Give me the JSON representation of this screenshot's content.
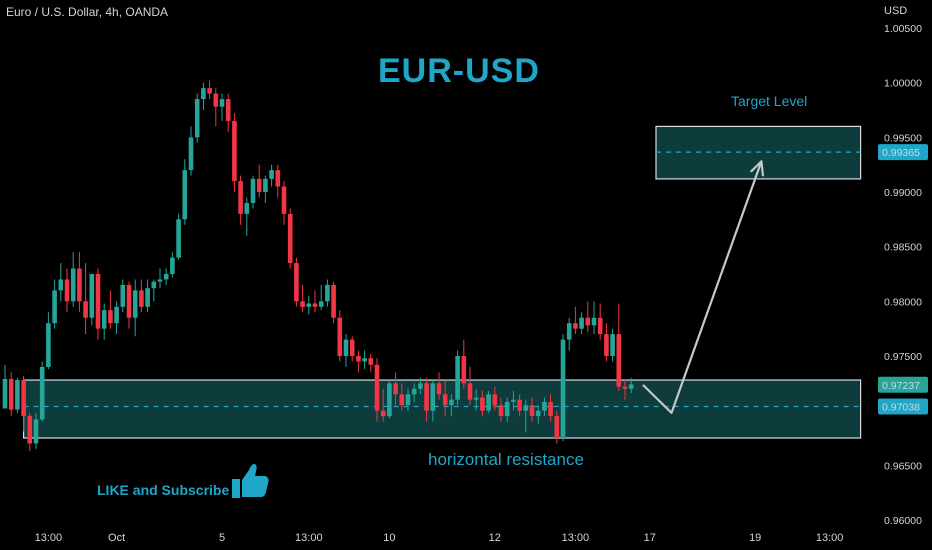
{
  "header": {
    "symbol": "Euro / U.S. Dollar, 4h, OANDA",
    "currency": "USD"
  },
  "annotations": {
    "headline": "EUR-USD",
    "target_label": "Target Level",
    "horizontal_resistance": "horizontal resistance",
    "like_subscribe": "LIKE and Subscribe",
    "thumbs_icon": "thumbs-up-icon"
  },
  "colors": {
    "background": "#000000",
    "up": "#26a69a",
    "down": "#f23645",
    "accent": "#1fa7c9",
    "zone_fill": "#0e3b3b",
    "zone_border": "#d8dde0",
    "arrow": "#c8c8c8"
  },
  "chart_data": {
    "type": "candlestick",
    "ylim": [
      0.96,
      1.005
    ],
    "y_ticks": [
      {
        "value": 0.96,
        "label": "0.96000"
      },
      {
        "value": 0.965,
        "label": "0.96500"
      },
      {
        "value": 0.975,
        "label": "0.97500"
      },
      {
        "value": 0.98,
        "label": "0.98000"
      },
      {
        "value": 0.985,
        "label": "0.98500"
      },
      {
        "value": 0.99,
        "label": "0.99000"
      },
      {
        "value": 0.995,
        "label": "0.99500"
      },
      {
        "value": 1.0,
        "label": "1.00000"
      },
      {
        "value": 1.005,
        "label": "1.00500"
      }
    ],
    "x_ticks": [
      {
        "index": 7,
        "label": "13:00"
      },
      {
        "index": 18,
        "label": "Oct"
      },
      {
        "index": 35,
        "label": "5"
      },
      {
        "index": 49,
        "label": "13:00"
      },
      {
        "index": 62,
        "label": "10"
      },
      {
        "index": 79,
        "label": "12"
      },
      {
        "index": 92,
        "label": "13:00"
      },
      {
        "index": 104,
        "label": "17"
      },
      {
        "index": 121,
        "label": "19"
      },
      {
        "index": 133,
        "label": "13:00"
      }
    ],
    "price_labels": [
      {
        "value": 0.97237,
        "label": "0.97237",
        "color": "#26a69a"
      },
      {
        "value": 0.97038,
        "label": "0.97038",
        "color": "#1fa7c9"
      },
      {
        "value": 0.99365,
        "label": "0.99365",
        "color": "#1fa7c9"
      }
    ],
    "zones": [
      {
        "name": "horizontal resistance",
        "from_index": 3,
        "to_index": 138,
        "low": 0.9675,
        "high": 0.9728,
        "mid": 0.97038
      },
      {
        "name": "Target Level",
        "from_index": 105,
        "to_index": 138,
        "low": 0.9912,
        "high": 0.996,
        "mid": 0.99365
      }
    ],
    "projection_path": [
      {
        "index": 103,
        "price": 0.9723
      },
      {
        "index": 107.5,
        "price": 0.9698
      },
      {
        "index": 122,
        "price": 0.9928
      }
    ],
    "candles": [
      [
        0.9702,
        0.9742,
        0.9702,
        0.9729
      ],
      [
        0.9729,
        0.9735,
        0.9695,
        0.9701
      ],
      [
        0.9701,
        0.973,
        0.9698,
        0.9728
      ],
      [
        0.9728,
        0.9732,
        0.9681,
        0.9695
      ],
      [
        0.9695,
        0.9698,
        0.9663,
        0.967
      ],
      [
        0.967,
        0.9698,
        0.9665,
        0.9692
      ],
      [
        0.9692,
        0.9745,
        0.969,
        0.974
      ],
      [
        0.974,
        0.979,
        0.9738,
        0.978
      ],
      [
        0.978,
        0.982,
        0.9775,
        0.981
      ],
      [
        0.981,
        0.9835,
        0.98,
        0.982
      ],
      [
        0.982,
        0.983,
        0.979,
        0.98
      ],
      [
        0.98,
        0.9845,
        0.9795,
        0.983
      ],
      [
        0.983,
        0.9845,
        0.979,
        0.98
      ],
      [
        0.98,
        0.9835,
        0.977,
        0.9785
      ],
      [
        0.9785,
        0.9825,
        0.9778,
        0.9825
      ],
      [
        0.9825,
        0.983,
        0.9765,
        0.9775
      ],
      [
        0.9775,
        0.9798,
        0.9765,
        0.9792
      ],
      [
        0.9792,
        0.981,
        0.9775,
        0.978
      ],
      [
        0.978,
        0.98,
        0.977,
        0.9795
      ],
      [
        0.9795,
        0.982,
        0.979,
        0.9815
      ],
      [
        0.9815,
        0.9818,
        0.9775,
        0.9785
      ],
      [
        0.9785,
        0.982,
        0.9768,
        0.981
      ],
      [
        0.981,
        0.982,
        0.979,
        0.9795
      ],
      [
        0.9795,
        0.982,
        0.979,
        0.9812
      ],
      [
        0.9812,
        0.982,
        0.98,
        0.9818
      ],
      [
        0.9818,
        0.983,
        0.9812,
        0.982
      ],
      [
        0.982,
        0.983,
        0.9815,
        0.9825
      ],
      [
        0.9825,
        0.9845,
        0.9822,
        0.984
      ],
      [
        0.984,
        0.988,
        0.9838,
        0.9875
      ],
      [
        0.9875,
        0.993,
        0.987,
        0.992
      ],
      [
        0.992,
        0.996,
        0.9915,
        0.995
      ],
      [
        0.995,
        0.999,
        0.9945,
        0.9985
      ],
      [
        0.9985,
        1.0,
        0.9975,
        0.9995
      ],
      [
        0.9995,
        1.0002,
        0.9985,
        0.999
      ],
      [
        0.999,
        0.9995,
        0.996,
        0.9978
      ],
      [
        0.9978,
        0.999,
        0.9965,
        0.9985
      ],
      [
        0.9985,
        0.999,
        0.9955,
        0.9965
      ],
      [
        0.9965,
        0.9972,
        0.99,
        0.991
      ],
      [
        0.991,
        0.9915,
        0.987,
        0.988
      ],
      [
        0.988,
        0.9895,
        0.986,
        0.989
      ],
      [
        0.989,
        0.9915,
        0.9885,
        0.9912
      ],
      [
        0.9912,
        0.9925,
        0.9895,
        0.99
      ],
      [
        0.99,
        0.9915,
        0.989,
        0.9912
      ],
      [
        0.9912,
        0.9925,
        0.9905,
        0.992
      ],
      [
        0.992,
        0.9925,
        0.9895,
        0.9905
      ],
      [
        0.9905,
        0.991,
        0.987,
        0.988
      ],
      [
        0.988,
        0.9885,
        0.983,
        0.9835
      ],
      [
        0.9835,
        0.984,
        0.9795,
        0.98
      ],
      [
        0.98,
        0.9815,
        0.979,
        0.9795
      ],
      [
        0.9795,
        0.9805,
        0.9788,
        0.9798
      ],
      [
        0.9798,
        0.981,
        0.979,
        0.9795
      ],
      [
        0.9795,
        0.9815,
        0.9792,
        0.98
      ],
      [
        0.98,
        0.982,
        0.9795,
        0.9815
      ],
      [
        0.9815,
        0.9818,
        0.978,
        0.9785
      ],
      [
        0.9785,
        0.9792,
        0.9745,
        0.975
      ],
      [
        0.975,
        0.977,
        0.974,
        0.9765
      ],
      [
        0.9765,
        0.9768,
        0.9745,
        0.975
      ],
      [
        0.975,
        0.9755,
        0.9735,
        0.9745
      ],
      [
        0.9745,
        0.9755,
        0.9738,
        0.9748
      ],
      [
        0.9748,
        0.9752,
        0.9735,
        0.9742
      ],
      [
        0.9742,
        0.9748,
        0.969,
        0.97
      ],
      [
        0.97,
        0.972,
        0.969,
        0.9695
      ],
      [
        0.9695,
        0.9728,
        0.9693,
        0.9725
      ],
      [
        0.9725,
        0.9735,
        0.9705,
        0.9715
      ],
      [
        0.9715,
        0.9725,
        0.97,
        0.9705
      ],
      [
        0.9705,
        0.972,
        0.97,
        0.9715
      ],
      [
        0.9715,
        0.9725,
        0.9708,
        0.972
      ],
      [
        0.972,
        0.973,
        0.9715,
        0.9725
      ],
      [
        0.9725,
        0.973,
        0.969,
        0.97
      ],
      [
        0.97,
        0.9728,
        0.969,
        0.9725
      ],
      [
        0.9725,
        0.9735,
        0.971,
        0.9715
      ],
      [
        0.9715,
        0.9728,
        0.9695,
        0.9705
      ],
      [
        0.9705,
        0.9715,
        0.9695,
        0.971
      ],
      [
        0.971,
        0.9755,
        0.9705,
        0.975
      ],
      [
        0.975,
        0.9765,
        0.972,
        0.9725
      ],
      [
        0.9725,
        0.974,
        0.9705,
        0.971
      ],
      [
        0.971,
        0.972,
        0.97,
        0.9712
      ],
      [
        0.9712,
        0.9718,
        0.9695,
        0.97
      ],
      [
        0.97,
        0.9718,
        0.9698,
        0.9715
      ],
      [
        0.9715,
        0.9722,
        0.97,
        0.9705
      ],
      [
        0.9705,
        0.9712,
        0.969,
        0.9695
      ],
      [
        0.9695,
        0.9712,
        0.969,
        0.9708
      ],
      [
        0.9708,
        0.9718,
        0.97,
        0.971
      ],
      [
        0.971,
        0.9715,
        0.9695,
        0.97
      ],
      [
        0.97,
        0.971,
        0.968,
        0.9705
      ],
      [
        0.9705,
        0.9712,
        0.969,
        0.9695
      ],
      [
        0.9695,
        0.9705,
        0.9688,
        0.97
      ],
      [
        0.97,
        0.9712,
        0.9695,
        0.9708
      ],
      [
        0.9708,
        0.9715,
        0.969,
        0.9695
      ],
      [
        0.9695,
        0.97,
        0.967,
        0.9675
      ],
      [
        0.9675,
        0.977,
        0.9672,
        0.9765
      ],
      [
        0.9765,
        0.9785,
        0.9755,
        0.978
      ],
      [
        0.978,
        0.9795,
        0.977,
        0.9775
      ],
      [
        0.9775,
        0.979,
        0.977,
        0.9785
      ],
      [
        0.9785,
        0.98,
        0.9772,
        0.9778
      ],
      [
        0.9778,
        0.98,
        0.977,
        0.9785
      ],
      [
        0.9785,
        0.9798,
        0.9765,
        0.977
      ],
      [
        0.977,
        0.978,
        0.9745,
        0.975
      ],
      [
        0.975,
        0.9775,
        0.9745,
        0.977
      ],
      [
        0.977,
        0.9798,
        0.9718,
        0.9722
      ],
      [
        0.9722,
        0.9728,
        0.971,
        0.972
      ],
      [
        0.972,
        0.973,
        0.9716,
        0.9724
      ]
    ]
  }
}
